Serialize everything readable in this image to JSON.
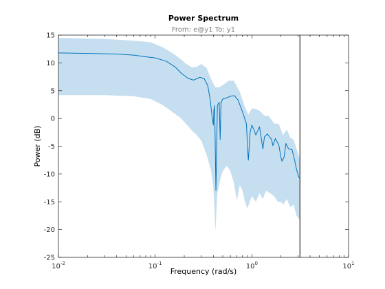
{
  "chart_data": {
    "type": "area",
    "title": "Power Spectrum",
    "subtitle": "From: e@y1  To: y1",
    "xlabel": "Frequency  (rad/s)",
    "ylabel": "Power (dB)",
    "xscale": "log",
    "xlim": [
      0.01,
      10
    ],
    "ylim": [
      -25,
      15
    ],
    "xtick_labels": [
      {
        "value": 0.01,
        "base": "10",
        "exponent": "-2"
      },
      {
        "value": 0.1,
        "base": "10",
        "exponent": "-1"
      },
      {
        "value": 1,
        "base": "10",
        "exponent": "0"
      },
      {
        "value": 10,
        "base": "10",
        "exponent": "1"
      }
    ],
    "yticks": [
      15,
      10,
      5,
      0,
      -5,
      -10,
      -15,
      -20,
      -25
    ],
    "grid": false,
    "nyquist_line_x": 3.14,
    "series": [
      {
        "kind": "line",
        "color": "#0072bd",
        "points": [
          [
            0.01,
            11.8
          ],
          [
            0.02,
            11.7
          ],
          [
            0.04,
            11.6
          ],
          [
            0.06,
            11.4
          ],
          [
            0.08,
            11.1
          ],
          [
            0.1,
            10.9
          ],
          [
            0.13,
            10.3
          ],
          [
            0.16,
            9.3
          ],
          [
            0.19,
            8.0
          ],
          [
            0.22,
            7.2
          ],
          [
            0.25,
            6.9
          ],
          [
            0.29,
            7.4
          ],
          [
            0.32,
            7.2
          ],
          [
            0.35,
            5.9
          ],
          [
            0.37,
            3.5
          ],
          [
            0.39,
            0.0
          ],
          [
            0.4,
            -1.2
          ],
          [
            0.405,
            1.5
          ],
          [
            0.41,
            2.3
          ],
          [
            0.415,
            -1.0
          ],
          [
            0.42,
            -7.0
          ],
          [
            0.425,
            -13.0
          ],
          [
            0.43,
            -8.0
          ],
          [
            0.44,
            2.3
          ],
          [
            0.46,
            2.9
          ],
          [
            0.47,
            -3.8
          ],
          [
            0.48,
            2.8
          ],
          [
            0.5,
            3.5
          ],
          [
            0.55,
            3.7
          ],
          [
            0.6,
            4.0
          ],
          [
            0.66,
            4.1
          ],
          [
            0.72,
            3.3
          ],
          [
            0.8,
            1.2
          ],
          [
            0.88,
            -1.0
          ],
          [
            0.9,
            -5.0
          ],
          [
            0.92,
            -7.5
          ],
          [
            0.96,
            -2.5
          ],
          [
            1.0,
            -1.2
          ],
          [
            1.05,
            -2.0
          ],
          [
            1.1,
            -3.0
          ],
          [
            1.2,
            -1.5
          ],
          [
            1.3,
            -5.5
          ],
          [
            1.35,
            -3.3
          ],
          [
            1.45,
            -2.8
          ],
          [
            1.6,
            -3.8
          ],
          [
            1.65,
            -4.9
          ],
          [
            1.75,
            -3.6
          ],
          [
            1.9,
            -4.8
          ],
          [
            2.0,
            -7.0
          ],
          [
            2.05,
            -7.7
          ],
          [
            2.15,
            -7.0
          ],
          [
            2.25,
            -4.5
          ],
          [
            2.4,
            -5.5
          ],
          [
            2.6,
            -5.6
          ],
          [
            2.75,
            -7.3
          ],
          [
            2.9,
            -9.2
          ],
          [
            3.05,
            -10.5
          ],
          [
            3.14,
            -10.8
          ]
        ]
      },
      {
        "kind": "confidence_band",
        "color": "#c5dff0",
        "upper": [
          [
            0.01,
            14.5
          ],
          [
            0.03,
            14.3
          ],
          [
            0.06,
            14.0
          ],
          [
            0.09,
            13.7
          ],
          [
            0.12,
            12.8
          ],
          [
            0.15,
            11.8
          ],
          [
            0.18,
            10.8
          ],
          [
            0.21,
            9.8
          ],
          [
            0.24,
            9.2
          ],
          [
            0.27,
            9.3
          ],
          [
            0.3,
            9.8
          ],
          [
            0.34,
            9.1
          ],
          [
            0.38,
            7.0
          ],
          [
            0.42,
            5.6
          ],
          [
            0.46,
            5.6
          ],
          [
            0.5,
            6.0
          ],
          [
            0.58,
            6.8
          ],
          [
            0.65,
            6.8
          ],
          [
            0.75,
            4.8
          ],
          [
            0.85,
            2.0
          ],
          [
            0.92,
            0.7
          ],
          [
            1.0,
            1.8
          ],
          [
            1.1,
            1.7
          ],
          [
            1.2,
            1.4
          ],
          [
            1.35,
            0.5
          ],
          [
            1.5,
            0.4
          ],
          [
            1.7,
            -0.9
          ],
          [
            1.9,
            -1.0
          ],
          [
            2.1,
            -3.0
          ],
          [
            2.3,
            -2.0
          ],
          [
            2.5,
            -3.5
          ],
          [
            2.7,
            -3.8
          ],
          [
            2.9,
            -5.5
          ],
          [
            3.14,
            -7.3
          ]
        ],
        "lower": [
          [
            0.01,
            4.2
          ],
          [
            0.03,
            4.2
          ],
          [
            0.06,
            4.0
          ],
          [
            0.09,
            3.5
          ],
          [
            0.12,
            2.4
          ],
          [
            0.15,
            1.2
          ],
          [
            0.18,
            0.2
          ],
          [
            0.21,
            -1.0
          ],
          [
            0.24,
            -2.2
          ],
          [
            0.27,
            -3.0
          ],
          [
            0.3,
            -4.0
          ],
          [
            0.34,
            -6.5
          ],
          [
            0.38,
            -9.5
          ],
          [
            0.4,
            -12.5
          ],
          [
            0.42,
            -20.3
          ],
          [
            0.44,
            -13.5
          ],
          [
            0.47,
            -11.0
          ],
          [
            0.5,
            -9.5
          ],
          [
            0.55,
            -8.5
          ],
          [
            0.6,
            -9.5
          ],
          [
            0.65,
            -11.5
          ],
          [
            0.7,
            -14.8
          ],
          [
            0.75,
            -12.0
          ],
          [
            0.8,
            -13.0
          ],
          [
            0.85,
            -15.0
          ],
          [
            0.9,
            -16.2
          ],
          [
            0.95,
            -15.0
          ],
          [
            1.0,
            -14.0
          ],
          [
            1.1,
            -15.0
          ],
          [
            1.2,
            -13.5
          ],
          [
            1.3,
            -14.5
          ],
          [
            1.4,
            -13.0
          ],
          [
            1.55,
            -13.5
          ],
          [
            1.7,
            -14.0
          ],
          [
            1.85,
            -15.0
          ],
          [
            2.0,
            -15.0
          ],
          [
            2.1,
            -15.5
          ],
          [
            2.3,
            -14.5
          ],
          [
            2.5,
            -16.0
          ],
          [
            2.7,
            -15.5
          ],
          [
            2.9,
            -17.5
          ],
          [
            3.14,
            -18.3
          ]
        ]
      }
    ]
  }
}
